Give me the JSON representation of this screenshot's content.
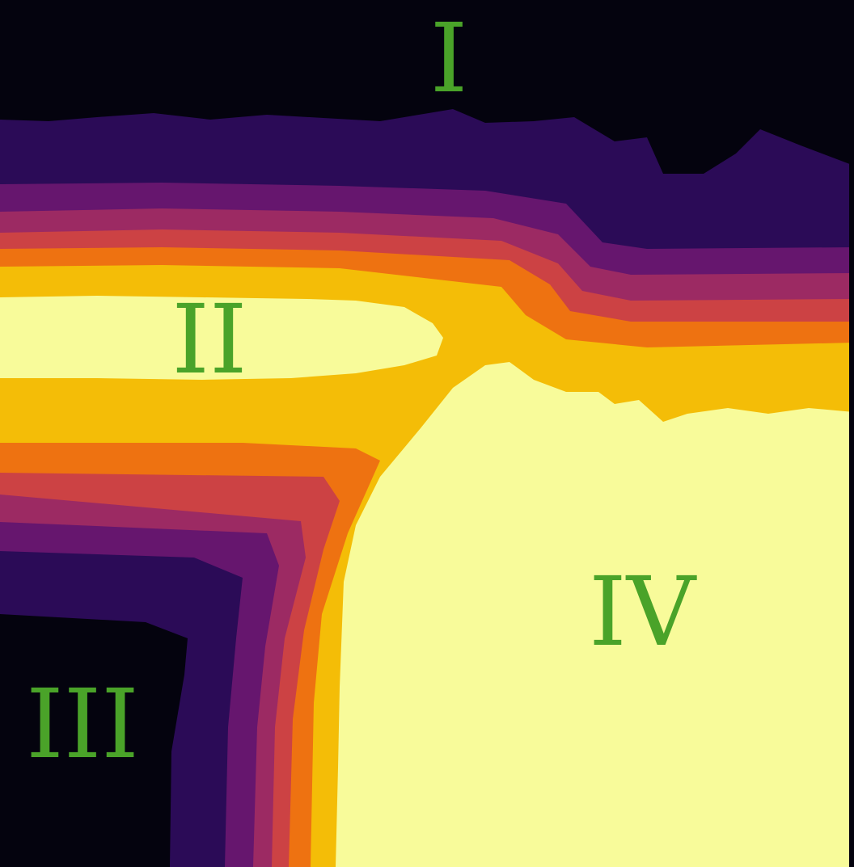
{
  "chart_data": {
    "type": "heatmap",
    "title": "",
    "xlabel": "",
    "ylabel": "",
    "colormap": "inferno",
    "contour_levels": 8,
    "level_colors": [
      "#04030e",
      "#2b0b57",
      "#66166e",
      "#9c2a63",
      "#cc4244",
      "#ee7211",
      "#f4bd07",
      "#f8fb9a"
    ],
    "region_labels": [
      "I",
      "II",
      "III",
      "IV"
    ],
    "label_color": "#4aa329",
    "grid": false,
    "axes_visible": false,
    "colorbar": false
  }
}
